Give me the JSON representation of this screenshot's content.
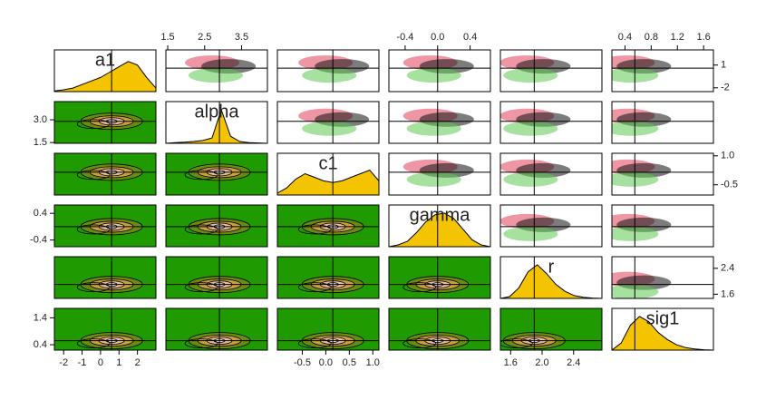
{
  "chart_data": {
    "type": "pairs",
    "variables": [
      {
        "name": "a1",
        "lim": [
          -2.5,
          3.0
        ],
        "xticks": [
          -2,
          -1,
          0,
          1,
          2
        ],
        "yticks": [
          1,
          -2
        ],
        "truth": 0.6,
        "density": [
          0.02,
          0.05,
          0.1,
          0.2,
          0.3,
          0.4,
          0.55,
          0.7,
          0.85,
          0.75,
          0.4,
          0.1
        ]
      },
      {
        "name": "alpha",
        "lim": [
          1.45,
          4.2
        ],
        "xticks": [
          1.5,
          2.5,
          3.5
        ],
        "yticks": [
          {
            "value": 3,
            "label": "3.0"
          },
          1.5
        ],
        "truth": 2.9,
        "density": [
          0,
          0.02,
          0.03,
          0.05,
          0.08,
          0.15,
          0.95,
          0.2,
          0.05,
          0.02,
          0.01,
          0
        ]
      },
      {
        "name": "c1",
        "lim": [
          -1.03,
          1.13
        ],
        "xticks": [
          -0.5,
          {
            "value": 0,
            "label": "0.0"
          },
          0.5,
          {
            "value": 1,
            "label": "1.0"
          }
        ],
        "yticks": [
          {
            "value": 1,
            "label": "1.0"
          },
          -0.5
        ],
        "truth": 0.15,
        "density": [
          0.05,
          0.2,
          0.45,
          0.6,
          0.5,
          0.4,
          0.35,
          0.4,
          0.5,
          0.6,
          0.7,
          0.4
        ]
      },
      {
        "name": "gamma",
        "lim": [
          -0.6,
          0.65
        ],
        "xticks": [
          -0.4,
          {
            "value": 0,
            "label": "0.0"
          },
          0.4
        ],
        "yticks": [
          0.4,
          -0.4
        ],
        "truth": 0,
        "density": [
          0,
          0.05,
          0.15,
          0.4,
          0.7,
          0.9,
          0.95,
          0.8,
          0.5,
          0.2,
          0.05,
          0
        ]
      },
      {
        "name": "r",
        "lim": [
          1.47,
          2.76
        ],
        "xticks": [
          1.6,
          {
            "value": 2,
            "label": "2.0"
          },
          2.4
        ],
        "yticks": [
          2.4,
          1.6
        ],
        "truth": 1.9,
        "density": [
          0,
          0.05,
          0.3,
          0.75,
          0.95,
          0.7,
          0.4,
          0.2,
          0.08,
          0.03,
          0.01,
          0
        ]
      },
      {
        "name": "sig1",
        "lim": [
          0.2,
          1.75
        ],
        "xticks": [
          0.4,
          0.8,
          1.2,
          1.6
        ],
        "yticks": [
          1.4,
          0.4
        ],
        "truth": 0.55,
        "density": [
          0,
          0.2,
          0.7,
          0.95,
          0.8,
          0.5,
          0.3,
          0.15,
          0.07,
          0.03,
          0.01,
          0
        ]
      }
    ]
  }
}
